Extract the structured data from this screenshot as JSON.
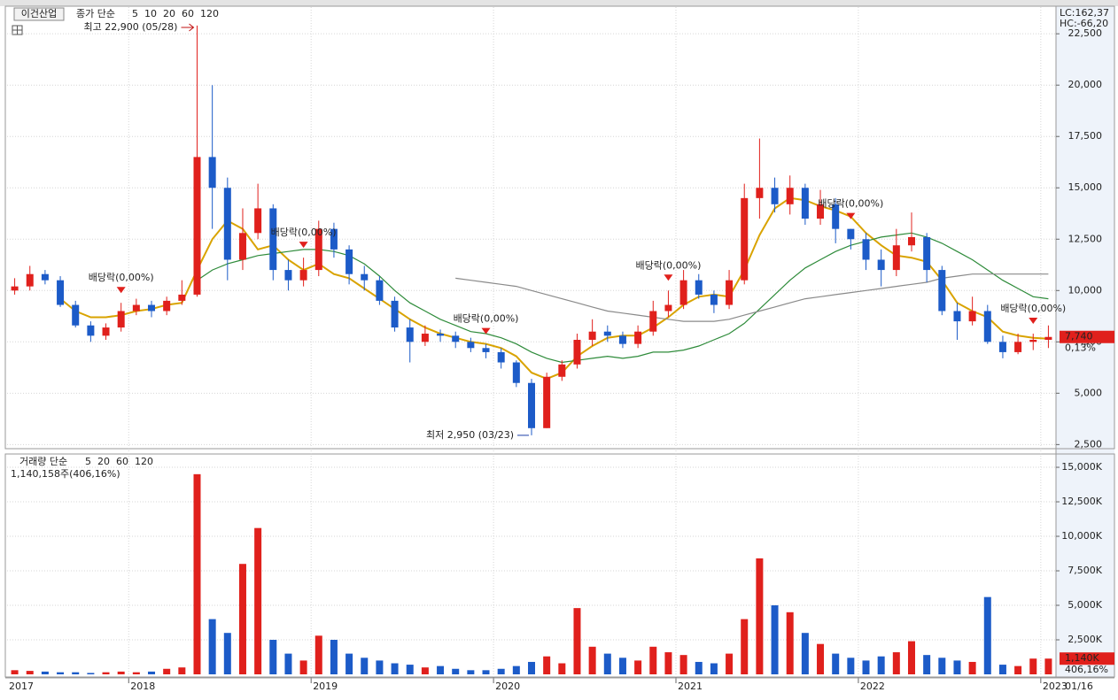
{
  "title": "이건산업",
  "chart_data": [
    {
      "type": "candlestick",
      "legend_prefix": "종가 단순",
      "legend_only": [
        {
          "name": "5",
          "color": "#c000c0"
        },
        {
          "name": "10",
          "color": "#202020"
        }
      ],
      "categories": [
        "2017",
        null,
        null,
        null,
        null,
        null,
        null,
        null,
        "2018",
        null,
        null,
        null,
        null,
        null,
        null,
        null,
        null,
        null,
        null,
        null,
        "2019",
        null,
        null,
        null,
        null,
        null,
        null,
        null,
        null,
        null,
        null,
        null,
        "2020",
        null,
        null,
        null,
        null,
        null,
        null,
        null,
        null,
        null,
        null,
        null,
        "2021",
        null,
        null,
        null,
        null,
        null,
        null,
        null,
        null,
        null,
        null,
        null,
        "2022",
        null,
        null,
        null,
        null,
        null,
        null,
        null,
        null,
        null,
        null,
        null,
        "2023"
      ],
      "open": [
        10000,
        10200,
        10800,
        10500,
        9300,
        8300,
        7800,
        8200,
        9000,
        9300,
        9000,
        9500,
        9800,
        16500,
        15000,
        11500,
        12800,
        14000,
        11000,
        10500,
        11000,
        13000,
        12000,
        10800,
        10500,
        9500,
        8200,
        7500,
        7900,
        7800,
        7500,
        7200,
        7000,
        6500,
        5500,
        3300,
        5800,
        6400,
        7600,
        8000,
        7800,
        7400,
        8000,
        9000,
        9300,
        10500,
        9800,
        9300,
        10500,
        14500,
        15000,
        14200,
        15000,
        13500,
        14200,
        13000,
        12500,
        11500,
        11000,
        12200,
        12600,
        11000,
        9000,
        8500,
        9000,
        7500,
        7000,
        7500,
        7600
      ],
      "high": [
        10600,
        11200,
        11000,
        10700,
        9500,
        8500,
        8400,
        9400,
        9600,
        9500,
        9700,
        10500,
        22900,
        20000,
        15500,
        14000,
        15200,
        14200,
        11500,
        11600,
        13400,
        13300,
        12200,
        11200,
        10700,
        9700,
        8600,
        8300,
        8100,
        8000,
        7700,
        7400,
        7200,
        6600,
        5700,
        6000,
        6600,
        7900,
        8600,
        8300,
        8000,
        8300,
        9500,
        10000,
        11000,
        10800,
        10000,
        11000,
        15200,
        17400,
        15500,
        15600,
        15200,
        14900,
        14500,
        13000,
        12800,
        12000,
        13000,
        13800,
        12800,
        11200,
        9400,
        9700,
        9300,
        7800,
        7900,
        7900,
        8300
      ],
      "low": [
        9800,
        10000,
        10300,
        9200,
        8200,
        7500,
        7600,
        8000,
        8800,
        8700,
        8800,
        9300,
        9700,
        13000,
        10500,
        11000,
        12500,
        10500,
        10000,
        10200,
        10700,
        11600,
        10300,
        10000,
        9300,
        8000,
        6500,
        7300,
        7500,
        7200,
        7000,
        6700,
        6200,
        5300,
        2950,
        3300,
        5600,
        6200,
        7300,
        7500,
        7200,
        7200,
        7800,
        8700,
        9100,
        9600,
        8900,
        9100,
        10300,
        13500,
        13800,
        13700,
        13200,
        13200,
        12300,
        12000,
        11000,
        10200,
        10700,
        11900,
        10400,
        8800,
        7600,
        8300,
        7400,
        6700,
        6900,
        7100,
        7200
      ],
      "close": [
        10200,
        10800,
        10500,
        9300,
        8300,
        7800,
        8200,
        9000,
        9300,
        9000,
        9500,
        9800,
        16500,
        15000,
        11500,
        12800,
        14000,
        11000,
        10500,
        11000,
        13000,
        12000,
        10800,
        10500,
        9500,
        8200,
        7500,
        7900,
        7800,
        7500,
        7200,
        7000,
        6500,
        5500,
        3300,
        5800,
        6400,
        7600,
        8000,
        7800,
        7400,
        8000,
        9000,
        9300,
        10500,
        9800,
        9300,
        10500,
        14500,
        15000,
        14200,
        15000,
        13500,
        14200,
        13000,
        12500,
        11500,
        11000,
        12200,
        12600,
        11000,
        9000,
        8500,
        9000,
        7500,
        7000,
        7500,
        7600,
        7740
      ],
      "up_color": "#e0201c",
      "down_color": "#1c5bc8",
      "series": [
        {
          "name": "20",
          "color": "#d9a300",
          "values": [
            null,
            null,
            null,
            9600,
            9000,
            8700,
            8700,
            8800,
            9000,
            9100,
            9300,
            9400,
            11000,
            12500,
            13400,
            13000,
            12000,
            12200,
            11500,
            11000,
            11300,
            10800,
            10600,
            10100,
            9600,
            9100,
            8600,
            8200,
            7900,
            7700,
            7500,
            7400,
            7200,
            6800,
            6000,
            5700,
            6000,
            6800,
            7300,
            7700,
            7800,
            7800,
            8200,
            8700,
            9300,
            9700,
            9800,
            9700,
            11000,
            12700,
            14000,
            14500,
            14400,
            14100,
            13900,
            13600,
            12800,
            12200,
            11700,
            11600,
            11400,
            10500,
            9400,
            9000,
            8700,
            8000,
            7800,
            7700,
            7650
          ]
        },
        {
          "name": "60",
          "color": "#2e8b3a",
          "values": [
            null,
            null,
            null,
            null,
            null,
            null,
            null,
            null,
            null,
            null,
            null,
            null,
            10500,
            11000,
            11300,
            11500,
            11700,
            11800,
            11900,
            12000,
            12000,
            11900,
            11700,
            11300,
            10700,
            10000,
            9400,
            9000,
            8600,
            8300,
            8000,
            7900,
            7700,
            7400,
            7000,
            6700,
            6500,
            6600,
            6700,
            6800,
            6700,
            6800,
            7000,
            7000,
            7100,
            7300,
            7600,
            7900,
            8400,
            9100,
            9800,
            10500,
            11100,
            11500,
            11900,
            12200,
            12400,
            12600,
            12700,
            12800,
            12600,
            12300,
            11900,
            11500,
            11000,
            10500,
            10100,
            9700,
            9600
          ]
        },
        {
          "name": "120",
          "color": "#8a8a8a",
          "values": [
            null,
            null,
            null,
            null,
            null,
            null,
            null,
            null,
            null,
            null,
            null,
            null,
            null,
            null,
            null,
            null,
            null,
            null,
            null,
            null,
            null,
            null,
            null,
            null,
            null,
            null,
            null,
            null,
            null,
            10600,
            10500,
            10400,
            10300,
            10200,
            10000,
            9800,
            9600,
            9400,
            9200,
            9000,
            8900,
            8800,
            8700,
            8600,
            8500,
            8500,
            8500,
            8600,
            8800,
            9000,
            9200,
            9400,
            9600,
            9700,
            9800,
            9900,
            10000,
            10100,
            10200,
            10300,
            10400,
            10600,
            10700,
            10800,
            10800,
            10800,
            10800,
            10800,
            10800
          ]
        }
      ],
      "ylim": [
        2300,
        23800
      ],
      "yticks": [
        {
          "value": 2500,
          "label": "2,500"
        },
        {
          "value": 5000,
          "label": "5,000"
        },
        {
          "value": 7500,
          "label": "7,500"
        },
        {
          "value": 10000,
          "label": "10,000"
        },
        {
          "value": 12500,
          "label": "12,500"
        },
        {
          "value": 15000,
          "label": "15,000"
        },
        {
          "value": 17500,
          "label": "17,500"
        },
        {
          "value": 20000,
          "label": "20,000"
        },
        {
          "value": 22500,
          "label": "22,500"
        }
      ],
      "grid": true,
      "high_label": "최고 22,900 (05/28)",
      "low_label": "최저 2,950 (03/23)",
      "dividend_labels": [
        "배당락(0,00%)",
        "배당락(0,00%)",
        "배당락(0,00%)",
        "배당락(0,00%)",
        "배당락(0,00%)",
        "배당락(0,00%)"
      ],
      "lc_label": "LC:162,37",
      "hc_label": "HC:-66,20",
      "last_price": {
        "value": 7740,
        "label": "7,740"
      },
      "change_label": "0,13%"
    },
    {
      "type": "bar",
      "legend_prefix": "거래량 단순",
      "legend_only": [
        {
          "name": "5",
          "color": "#c000c0"
        },
        {
          "name": "20",
          "color": "#d9a300"
        },
        {
          "name": "60",
          "color": "#2e8b3a"
        },
        {
          "name": "120",
          "color": "#8a8a8a"
        }
      ],
      "summary": "1,140,158주(406,16%)",
      "values": [
        300,
        250,
        200,
        150,
        150,
        100,
        150,
        200,
        150,
        200,
        400,
        500,
        14500,
        4000,
        3000,
        8000,
        10600,
        2500,
        1500,
        1000,
        2800,
        2500,
        1500,
        1200,
        1000,
        800,
        700,
        500,
        600,
        400,
        300,
        300,
        400,
        600,
        900,
        1300,
        800,
        4800,
        2000,
        1500,
        1200,
        1000,
        2000,
        1600,
        1400,
        900,
        800,
        1500,
        4000,
        8400,
        5000,
        4500,
        3000,
        2200,
        1500,
        1200,
        1000,
        1300,
        1600,
        2400,
        1400,
        1200,
        1000,
        900,
        5600,
        700,
        600,
        1140,
        1140
      ],
      "ylim": [
        0,
        15900
      ],
      "yticks": [
        {
          "value": 2500,
          "label": "2,500K"
        },
        {
          "value": 5000,
          "label": "5,000K"
        },
        {
          "value": 7500,
          "label": "7,500K"
        },
        {
          "value": 10000,
          "label": "10,000K"
        },
        {
          "value": 12500,
          "label": "12,500K"
        },
        {
          "value": 15000,
          "label": "15,000K"
        }
      ],
      "grid": true,
      "last_volume": {
        "value": 1140,
        "label": "1,140K"
      },
      "ratio_label": "406,16%",
      "date_label": "01/16"
    }
  ]
}
